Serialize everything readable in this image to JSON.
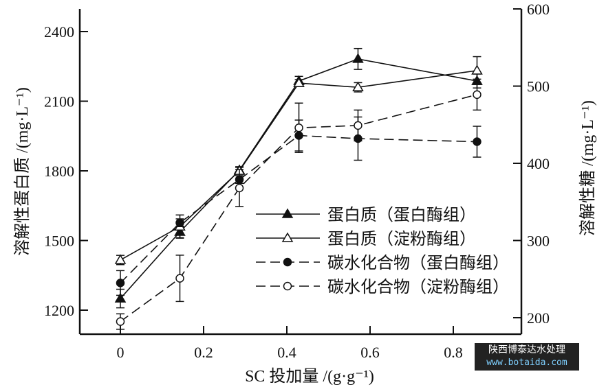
{
  "chart_data": {
    "type": "line",
    "xlabel": "SC 投加量 /(g·g⁻¹)",
    "ylabel": "溶解性蛋白质 /(mg·L⁻¹)",
    "y2label": "溶解性糖 /(mg·L⁻¹)",
    "xlim": [
      0,
      0.9
    ],
    "ylim": [
      1100,
      2600
    ],
    "y2lim": [
      190,
      600
    ],
    "xticks": [
      "0",
      "0.2",
      "0.4",
      "0.6",
      "0.8"
    ],
    "yticks": [
      "1200",
      "1500",
      "1800",
      "2100",
      "2400"
    ],
    "y2ticks": [
      "200",
      "300",
      "400",
      "500",
      "600"
    ],
    "x": [
      0,
      0.143,
      0.286,
      0.429,
      0.571,
      0.857
    ],
    "legend_position": "center-right",
    "series": [
      {
        "name": "蛋白质（蛋白酶组）",
        "axis": "left",
        "marker": "filled-triangle",
        "dash": false,
        "values": [
          1250,
          1537,
          1803,
          2187,
          2282,
          2187
        ],
        "err": [
          40,
          25,
          15,
          20,
          45,
          30
        ]
      },
      {
        "name": "蛋白质（淀粉酶组）",
        "axis": "left",
        "marker": "open-triangle",
        "dash": false,
        "values": [
          1416,
          1560,
          1800,
          2178,
          2160,
          2232
        ],
        "err": [
          20,
          50,
          15,
          15,
          20,
          60
        ]
      },
      {
        "name": "碳水化合物（蛋白酶组）",
        "axis": "right",
        "marker": "filled-circle",
        "dash": true,
        "values": [
          245,
          323,
          379,
          436,
          432,
          428
        ],
        "err": [
          16,
          5,
          5,
          20,
          28,
          20
        ]
      },
      {
        "name": "碳水化合物（淀粉酶组）",
        "axis": "right",
        "marker": "open-circle",
        "dash": true,
        "values": [
          195,
          251,
          368,
          446,
          449,
          489
        ],
        "err": [
          10,
          30,
          24,
          32,
          20,
          20
        ]
      }
    ]
  },
  "watermark": {
    "line1": "陕西博泰达水处理",
    "line2": "www.botaida.com"
  }
}
